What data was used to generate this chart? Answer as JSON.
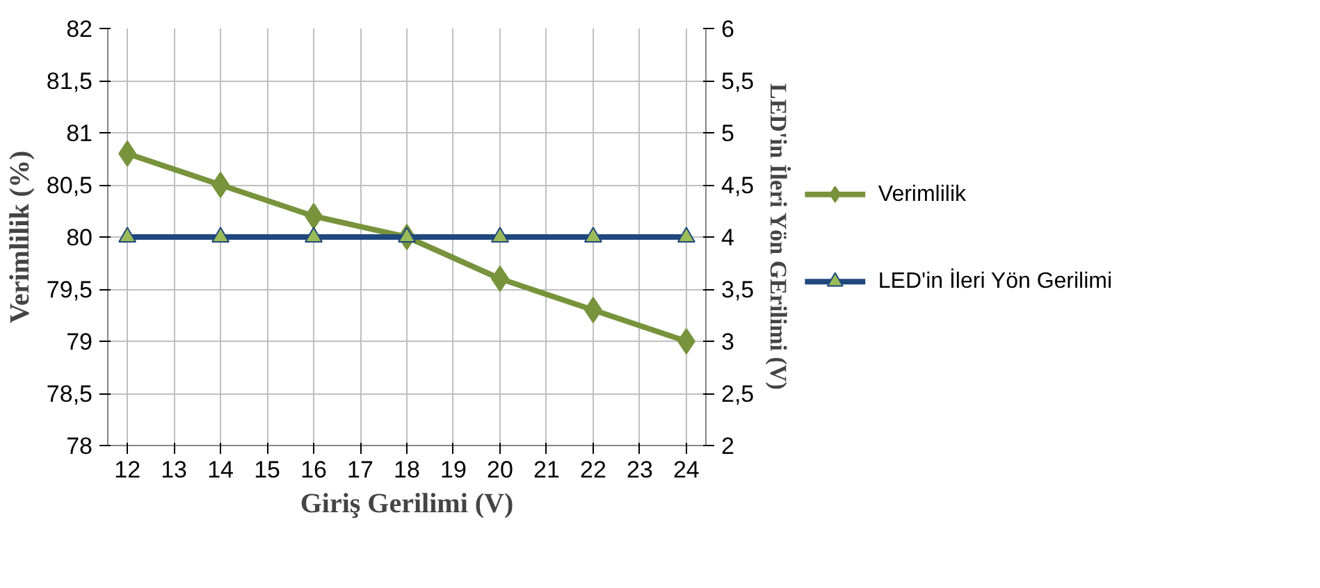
{
  "chart_data": {
    "type": "line",
    "xlabel": "Giriş Gerilimi (V)",
    "ylabel": "Verimlilik (%)",
    "y2label": "LED'in İleri Yön GErilimi (V)",
    "x": [
      12,
      14,
      16,
      18,
      20,
      22,
      24
    ],
    "series": [
      {
        "name": "Verimlilik",
        "color": "#77933c",
        "marker": "diamond",
        "values": [
          80.8,
          80.5,
          80.2,
          80.0,
          79.6,
          79.3,
          79.0
        ]
      },
      {
        "name": "LED'in İleri Yön Gerilimi",
        "color": "#1f497d",
        "marker": "triangle",
        "axis": "y2",
        "values": [
          4,
          4,
          4,
          4,
          4,
          4,
          4
        ]
      }
    ],
    "xlim": [
      12,
      24
    ],
    "xticks": [
      12,
      13,
      14,
      15,
      16,
      17,
      18,
      19,
      20,
      21,
      22,
      23,
      24
    ],
    "ylim": [
      78,
      82
    ],
    "yticks": [
      {
        "value": 78,
        "label": "78"
      },
      {
        "value": 78.5,
        "label": "78,5"
      },
      {
        "value": 79,
        "label": "79"
      },
      {
        "value": 79.5,
        "label": "79,5"
      },
      {
        "value": 80,
        "label": "80"
      },
      {
        "value": 80.5,
        "label": "80,5"
      },
      {
        "value": 81,
        "label": "81"
      },
      {
        "value": 81.5,
        "label": "81,5"
      },
      {
        "value": 82,
        "label": "82"
      }
    ],
    "y2lim": [
      2,
      6
    ],
    "y2ticks": [
      {
        "value": 2,
        "label": "2"
      },
      {
        "value": 2.5,
        "label": "2,5"
      },
      {
        "value": 3,
        "label": "3"
      },
      {
        "value": 3.5,
        "label": "3,5"
      },
      {
        "value": 4,
        "label": "4"
      },
      {
        "value": 4.5,
        "label": "4,5"
      },
      {
        "value": 5,
        "label": "5"
      },
      {
        "value": 5.5,
        "label": "5,5"
      },
      {
        "value": 6,
        "label": "6"
      }
    ],
    "grid": true,
    "legend": "right",
    "line_style": "solid"
  }
}
